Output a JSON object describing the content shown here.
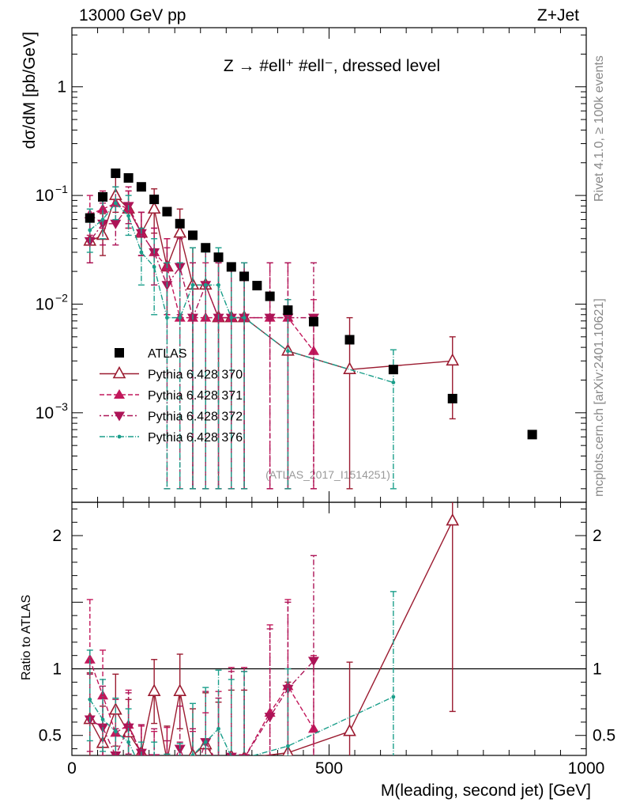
{
  "header": {
    "energy": "13000 GeV pp",
    "process": "Z+Jet"
  },
  "side_labels": {
    "rivet": "Rivet 4.1.0, ≥ 100k events",
    "source": "mcplots.cern.ch [arXiv:2401.10621]"
  },
  "chart_data": {
    "type": "scatter",
    "title": "Z → #ell⁺ #ell⁻, dressed level",
    "analysis_id": "(ATLAS_2017_I1514251)",
    "xlabel": "M(leading, second jet) [GeV]",
    "ylabel": "dσ/dM [pb/GeV]",
    "ratio_ylabel": "Ratio to ATLAS",
    "xlim": [
      0,
      1000
    ],
    "ylim_log": [
      0.00015,
      3.5
    ],
    "ratio_ylim": [
      0.35,
      2.25
    ],
    "x_ticks": [
      {
        "v": 0,
        "label": "0"
      },
      {
        "v": 500,
        "label": "500"
      },
      {
        "v": 1000,
        "label": "1000"
      }
    ],
    "y_ticks": [
      {
        "exp": -3,
        "label": "10",
        "sup": "−3"
      },
      {
        "exp": -2,
        "label": "10",
        "sup": "−2"
      },
      {
        "exp": -1,
        "label": "10",
        "sup": "−1"
      },
      {
        "exp": 0,
        "label": "1",
        "sup": ""
      }
    ],
    "ratio_ticks": [
      {
        "v": 0.5,
        "label": "0.5"
      },
      {
        "v": 1,
        "label": "1"
      },
      {
        "v": 2,
        "label": "2"
      }
    ],
    "data": {
      "name": "ATLAS",
      "color": "#000000",
      "x": [
        35,
        60,
        85,
        110,
        135,
        160,
        185,
        210,
        235,
        260,
        285,
        310,
        335,
        360,
        385,
        420,
        470,
        540,
        625,
        740,
        895
      ],
      "y": [
        0.062,
        0.097,
        0.16,
        0.145,
        0.12,
        0.092,
        0.071,
        0.055,
        0.043,
        0.033,
        0.027,
        0.022,
        0.018,
        0.0148,
        0.0118,
        0.0088,
        0.0069,
        0.0047,
        0.0025,
        0.00135,
        0.00063
      ]
    },
    "series": [
      {
        "name": "Pythia 6.428 370",
        "color": "#9b1b30",
        "marker": "triangle-up-open",
        "dash": "",
        "x": [
          35,
          60,
          85,
          110,
          135,
          160,
          185,
          210,
          235,
          260,
          285,
          310,
          335,
          420,
          540,
          740
        ],
        "y": [
          0.038,
          0.043,
          0.1,
          0.075,
          0.045,
          0.075,
          0.022,
          0.045,
          0.015,
          0.015,
          0.0075,
          0.0075,
          0.0075,
          0.0037,
          0.0025,
          0.003
        ],
        "yhi": [
          0.06,
          0.068,
          0.15,
          0.11,
          0.07,
          0.115,
          0.04,
          0.075,
          0.033,
          0.033,
          0.024,
          0.024,
          0.024,
          0.011,
          0.0075,
          0.005
        ],
        "ylo": [
          0.024,
          0.028,
          0.07,
          0.05,
          0.028,
          0.045,
          0.008,
          0.022,
          0.0002,
          0.0002,
          0.0002,
          0.0002,
          0.0002,
          0.0002,
          0.0002,
          0.00088
        ],
        "ratio": [
          0.62,
          0.44,
          0.69,
          0.52,
          0.37,
          0.83,
          0.31,
          0.83,
          0.35,
          0.43,
          0.28,
          0.34,
          0.33,
          0.37,
          0.53,
          2.11
        ],
        "rhi": [
          0.97,
          0.72,
          0.96,
          0.77,
          0.58,
          1.07,
          0.57,
          1.11,
          0.7,
          0.82,
          0.75,
          0.84,
          0.84,
          0.9,
          1.05,
          3.5
        ],
        "rlo": [
          0.3,
          0.17,
          0.42,
          0.27,
          0.16,
          0.59,
          0.05,
          0.55,
          0.0,
          0.0,
          0.0,
          0.0,
          0.0,
          0.0,
          0.0,
          0.68
        ]
      },
      {
        "name": "Pythia 6.428 371",
        "color": "#c2185b",
        "marker": "triangle-up",
        "dash": "6,3",
        "x": [
          35,
          60,
          85,
          110,
          135,
          160,
          185,
          210,
          235,
          260,
          285,
          310,
          335,
          385,
          420,
          470
        ],
        "y": [
          0.067,
          0.075,
          0.085,
          0.075,
          0.045,
          0.03,
          0.022,
          0.0075,
          0.0075,
          0.0075,
          0.0075,
          0.0075,
          0.0075,
          0.0075,
          0.0075,
          0.0037
        ],
        "yhi": [
          0.1,
          0.11,
          0.12,
          0.11,
          0.07,
          0.05,
          0.04,
          0.024,
          0.024,
          0.024,
          0.024,
          0.024,
          0.024,
          0.024,
          0.024,
          0.011
        ],
        "ylo": [
          0.043,
          0.05,
          0.055,
          0.05,
          0.028,
          0.015,
          0.008,
          0.0002,
          0.0002,
          0.0002,
          0.0002,
          0.0002,
          0.0002,
          0.0002,
          0.0002,
          0.0002
        ],
        "ratio": [
          1.07,
          0.8,
          0.52,
          0.58,
          0.36,
          0.31,
          0.3,
          0.14,
          0.17,
          0.22,
          0.27,
          0.33,
          0.33,
          0.67,
          0.87,
          0.55
        ],
        "rhi": [
          1.52,
          1.14,
          0.77,
          0.84,
          0.57,
          0.53,
          0.56,
          0.45,
          0.53,
          0.67,
          0.83,
          1.01,
          1.01,
          1.33,
          1.52,
          1.1
        ],
        "rlo": [
          0.62,
          0.46,
          0.27,
          0.32,
          0.15,
          0.09,
          0.04,
          0.0,
          0.0,
          0.0,
          0.0,
          0.0,
          0.0,
          0.0,
          0.0,
          0.0
        ]
      },
      {
        "name": "Pythia 6.428 372",
        "color": "#ad1457",
        "marker": "triangle-down",
        "dash": "2,3,7,3",
        "x": [
          35,
          60,
          85,
          110,
          135,
          160,
          185,
          210,
          235,
          260,
          285,
          310,
          335,
          385,
          420,
          470
        ],
        "y": [
          0.038,
          0.055,
          0.055,
          0.08,
          0.045,
          0.03,
          0.015,
          0.022,
          0.0075,
          0.015,
          0.0075,
          0.0075,
          0.0075,
          0.0075,
          0.0075,
          0.0075
        ],
        "yhi": [
          0.06,
          0.085,
          0.085,
          0.12,
          0.07,
          0.05,
          0.033,
          0.04,
          0.024,
          0.033,
          0.024,
          0.024,
          0.024,
          0.024,
          0.024,
          0.024
        ],
        "ylo": [
          0.024,
          0.035,
          0.035,
          0.055,
          0.028,
          0.015,
          0.0002,
          0.008,
          0.0002,
          0.0002,
          0.0002,
          0.0002,
          0.0002,
          0.0002,
          0.0002,
          0.0002
        ],
        "ratio": [
          0.62,
          0.56,
          0.35,
          0.56,
          0.37,
          0.33,
          0.21,
          0.4,
          0.17,
          0.45,
          0.28,
          0.34,
          0.33,
          0.64,
          0.85,
          1.06
        ],
        "rhi": [
          0.96,
          0.87,
          0.55,
          0.82,
          0.58,
          0.55,
          0.46,
          0.72,
          0.55,
          0.83,
          0.78,
          0.98,
          0.98,
          1.3,
          1.5,
          1.85
        ],
        "rlo": [
          0.38,
          0.35,
          0.21,
          0.36,
          0.16,
          0.1,
          0.0,
          0.11,
          0.0,
          0.0,
          0.0,
          0.0,
          0.0,
          0.0,
          0.0,
          0.0
        ]
      },
      {
        "name": "Pythia 6.428 376",
        "color": "#1a9e8a",
        "marker": "star",
        "dash": "7,2,1,2",
        "x": [
          35,
          60,
          85,
          110,
          135,
          160,
          185,
          210,
          235,
          260,
          285,
          310,
          335,
          420,
          625
        ],
        "y": [
          0.048,
          0.06,
          0.085,
          0.065,
          0.03,
          0.022,
          0.0075,
          0.0075,
          0.015,
          0.015,
          0.015,
          0.0075,
          0.0075,
          0.0037,
          0.0019
        ],
        "yhi": [
          0.075,
          0.09,
          0.12,
          0.1,
          0.05,
          0.04,
          0.024,
          0.024,
          0.033,
          0.033,
          0.033,
          0.024,
          0.024,
          0.011,
          0.0038
        ],
        "ylo": [
          0.03,
          0.04,
          0.06,
          0.043,
          0.015,
          0.008,
          0.0002,
          0.0002,
          0.0002,
          0.0002,
          0.0002,
          0.0002,
          0.0002,
          0.0002,
          0.0002
        ],
        "ratio": [
          0.77,
          0.62,
          0.53,
          0.45,
          0.25,
          0.24,
          0.11,
          0.14,
          0.35,
          0.45,
          0.55,
          0.34,
          0.33,
          0.42,
          0.79
        ],
        "rhi": [
          1.14,
          0.92,
          0.78,
          0.7,
          0.45,
          0.45,
          0.36,
          0.44,
          0.74,
          0.86,
          0.99,
          0.92,
          0.98,
          1.0,
          1.58
        ],
        "rlo": [
          0.46,
          0.38,
          0.33,
          0.26,
          0.1,
          0.05,
          0.0,
          0.0,
          0.0,
          0.0,
          0.0,
          0.0,
          0.0,
          0.0,
          0.0
        ]
      }
    ]
  }
}
